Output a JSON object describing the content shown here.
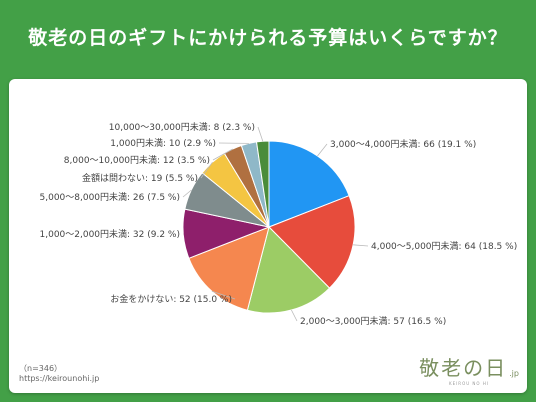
{
  "title": "敬老の日のギフトにかけられる予算はいくらですか？",
  "footnote": {
    "n": "（n=346）",
    "url": "https://keirounohi.jp"
  },
  "logo": {
    "main": "敬老の日",
    "suffix": ".jp",
    "sub": "KEIROU NO HI"
  },
  "chart_data": {
    "type": "pie",
    "title": "",
    "slices": [
      {
        "label": "3,000〜4,000円未満: 66 (19.1 %)",
        "value": 66,
        "percent": 19.1,
        "color": "#2196f3"
      },
      {
        "label": "4,000〜5,000円未満: 64 (18.5 %)",
        "value": 64,
        "percent": 18.5,
        "color": "#e74c3c"
      },
      {
        "label": "2,000〜3,000円未満: 57 (16.5 %)",
        "value": 57,
        "percent": 16.5,
        "color": "#9ccc65"
      },
      {
        "label": "お金をかけない: 52 (15.0 %)",
        "value": 52,
        "percent": 15.0,
        "color": "#f5874f"
      },
      {
        "label": "1,000〜2,000円未満: 32 (9.2 %)",
        "value": 32,
        "percent": 9.2,
        "color": "#8e1f6b"
      },
      {
        "label": "5,000〜8,000円未満: 26 (7.5 %)",
        "value": 26,
        "percent": 7.5,
        "color": "#7f8c8d"
      },
      {
        "label": "金額は問わない: 19 (5.5 %)",
        "value": 19,
        "percent": 5.5,
        "color": "#f4c542"
      },
      {
        "label": "8,000〜10,000円未満: 12 (3.5 %)",
        "value": 12,
        "percent": 3.5,
        "color": "#b07040"
      },
      {
        "label": "1,000円未満: 10 (2.9 %)",
        "value": 10,
        "percent": 2.9,
        "color": "#8fb8c8"
      },
      {
        "label": "10,000〜30,000円未満: 8 (2.3 %)",
        "value": 8,
        "percent": 2.3,
        "color": "#4a8c3a"
      }
    ]
  }
}
